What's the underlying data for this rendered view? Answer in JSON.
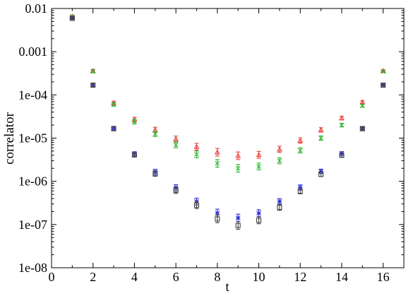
{
  "chart_data": {
    "type": "scatter",
    "title": "",
    "xlabel": "t",
    "ylabel": "correlator",
    "xlim": [
      0,
      17
    ],
    "ylim": [
      1e-08,
      0.01
    ],
    "yscale": "log",
    "grid": false,
    "legend": "none",
    "x_ticks": [
      0,
      2,
      4,
      6,
      8,
      10,
      12,
      14,
      16
    ],
    "x_tick_labels": [
      "0",
      "2",
      "4",
      "6",
      "8",
      "10",
      "12",
      "14",
      "16"
    ],
    "y_ticks": [
      1e-08,
      1e-07,
      1e-06,
      1e-05,
      0.0001,
      0.001,
      0.01
    ],
    "y_tick_labels": [
      "1e-08",
      "1e-07",
      "1e-06",
      "1e-05",
      "1e-04",
      "0.001",
      "0.01"
    ],
    "series": [
      {
        "color": "#e8413b",
        "marker": "triangle",
        "x": [
          1,
          2,
          3,
          4,
          5,
          6,
          7,
          8,
          9,
          10,
          11,
          12,
          13,
          14,
          15,
          16
        ],
        "values": [
          0.0065,
          0.00036,
          6.5e-05,
          2.7e-05,
          1.55e-05,
          9.5e-06,
          6.3e-06,
          4.7e-06,
          3.9e-06,
          4.1e-06,
          5.5e-06,
          8.8e-06,
          1.55e-05,
          2.9e-05,
          6.8e-05,
          0.00036
        ]
      },
      {
        "color": "#2db52d",
        "marker": "cross",
        "x": [
          1,
          2,
          3,
          4,
          5,
          6,
          7,
          8,
          9,
          10,
          11,
          12,
          13,
          14,
          15,
          16
        ],
        "values": [
          0.0065,
          0.00035,
          6e-05,
          2.4e-05,
          1.25e-05,
          7e-06,
          4.2e-06,
          2.6e-06,
          2e-06,
          2.2e-06,
          3e-06,
          5.2e-06,
          1e-05,
          2e-05,
          5.6e-05,
          0.00035
        ]
      },
      {
        "color": "#2b2bd8",
        "marker": "star",
        "x": [
          1,
          2,
          3,
          4,
          5,
          6,
          7,
          8,
          9,
          10,
          11,
          12,
          13,
          14,
          15,
          16
        ],
        "values": [
          0.006,
          0.00017,
          1.7e-05,
          4.3e-06,
          1.65e-06,
          7.1e-07,
          3.4e-07,
          1.85e-07,
          1.42e-07,
          1.83e-07,
          3.4e-07,
          7.2e-07,
          1.7e-06,
          4.4e-06,
          1.7e-05,
          0.00017
        ]
      },
      {
        "color": "#444444",
        "marker": "square",
        "x": [
          1,
          2,
          3,
          4,
          5,
          6,
          7,
          8,
          9,
          10,
          11,
          12,
          13,
          14,
          15,
          16
        ],
        "values": [
          0.0059,
          0.000168,
          1.65e-05,
          4.1e-06,
          1.5e-06,
          6.2e-07,
          2.8e-07,
          1.35e-07,
          9.5e-08,
          1.25e-07,
          2.5e-07,
          5.9e-07,
          1.45e-06,
          4e-06,
          1.65e-05,
          0.000168
        ]
      }
    ]
  }
}
